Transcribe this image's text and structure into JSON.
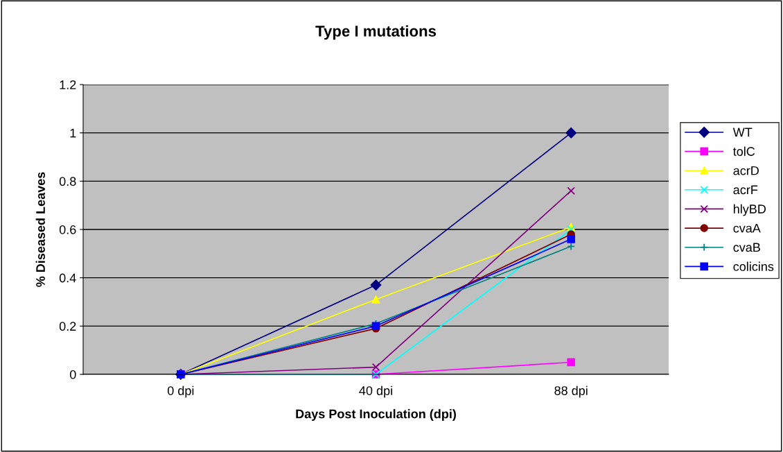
{
  "chart_data": {
    "type": "line",
    "title": "Type I mutations",
    "xlabel": "Days Post Inoculation (dpi)",
    "ylabel": "% Diseased Leaves",
    "categories": [
      "0 dpi",
      "40 dpi",
      "88 dpi"
    ],
    "series": [
      {
        "name": "WT",
        "color": "#000080",
        "marker": "diamond",
        "values": [
          0,
          0.37,
          1.0
        ]
      },
      {
        "name": "tolC",
        "color": "#ff00ff",
        "marker": "square",
        "values": [
          0,
          0,
          0.05
        ]
      },
      {
        "name": "acrD",
        "color": "#ffff00",
        "marker": "triangle",
        "values": [
          0,
          0.31,
          0.61
        ]
      },
      {
        "name": "acrF",
        "color": "#00ffff",
        "marker": "cross",
        "values": [
          0,
          0,
          0.6
        ]
      },
      {
        "name": "hlyBD",
        "color": "#800080",
        "marker": "cross",
        "values": [
          0,
          0.03,
          0.76
        ]
      },
      {
        "name": "cvaA",
        "color": "#800000",
        "marker": "circle",
        "values": [
          0,
          0.19,
          0.58
        ]
      },
      {
        "name": "cvaB",
        "color": "#008080",
        "marker": "plus",
        "values": [
          0,
          0.21,
          0.53
        ]
      },
      {
        "name": "colicins",
        "color": "#0000ff",
        "marker": "square",
        "values": [
          0,
          0.2,
          0.56
        ]
      }
    ],
    "ylim": [
      0,
      1.2
    ],
    "yticks": [
      0,
      0.2,
      0.4,
      0.6,
      0.8,
      1,
      1.2
    ],
    "grid": "y",
    "legend": "right",
    "line_style": "solid"
  }
}
